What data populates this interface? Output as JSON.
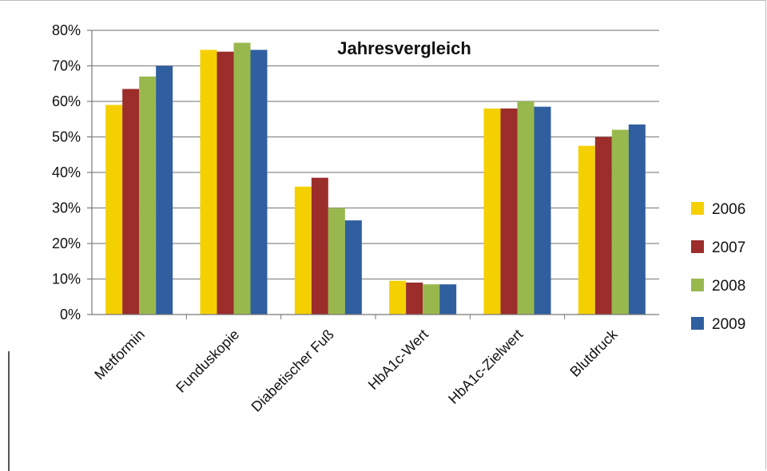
{
  "chart_data": {
    "type": "bar",
    "title": "Jahresvergleich",
    "xlabel": "",
    "ylabel": "",
    "ylim": [
      0,
      0.8
    ],
    "yticks": [
      "0%",
      "10%",
      "20%",
      "30%",
      "40%",
      "50%",
      "60%",
      "70%",
      "80%"
    ],
    "grid": true,
    "legend_position": "right",
    "categories": [
      "Metformin",
      "Funduskopie",
      "Diabetischer Fuß",
      "HbA1c-Wert",
      "HbA1c-Zielwert",
      "Blutdruck"
    ],
    "series": [
      {
        "name": "2006",
        "color": "#f5d000",
        "values": [
          0.59,
          0.745,
          0.36,
          0.095,
          0.58,
          0.475
        ]
      },
      {
        "name": "2007",
        "color": "#9b2d2b",
        "values": [
          0.635,
          0.74,
          0.385,
          0.09,
          0.58,
          0.5
        ]
      },
      {
        "name": "2008",
        "color": "#98b84e",
        "values": [
          0.67,
          0.765,
          0.3,
          0.085,
          0.6,
          0.52
        ]
      },
      {
        "name": "2009",
        "color": "#2f5f9f",
        "values": [
          0.7,
          0.745,
          0.265,
          0.085,
          0.585,
          0.535
        ]
      }
    ]
  }
}
